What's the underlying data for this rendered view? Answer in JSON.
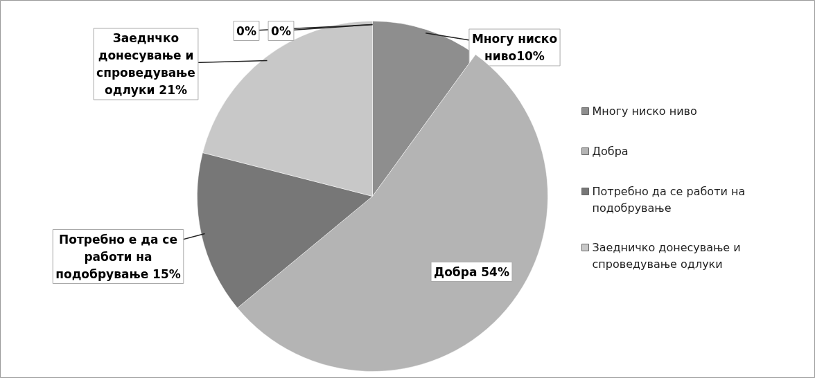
{
  "chart_data": {
    "type": "pie",
    "categories": [
      "Многу ниско ниво",
      "Добра",
      "Потребно да се работи на подобрување",
      "Заедничко донесување и спроведување одлуки",
      null,
      null
    ],
    "values": [
      10,
      54,
      15,
      21,
      0,
      0
    ],
    "colors": [
      "#8e8e8e",
      "#b4b4b4",
      "#777777",
      "#c8c8c8",
      "#a0a0a0",
      "#a8a8a8"
    ],
    "value_labels": [
      "Многу ниско ниво10%",
      "Добра 54%",
      "Потребно е да се работи на подобрување 15%",
      "Заеднчко донесување и спроведување одлуки 21%",
      "0%",
      "0%"
    ],
    "legend": "right"
  }
}
